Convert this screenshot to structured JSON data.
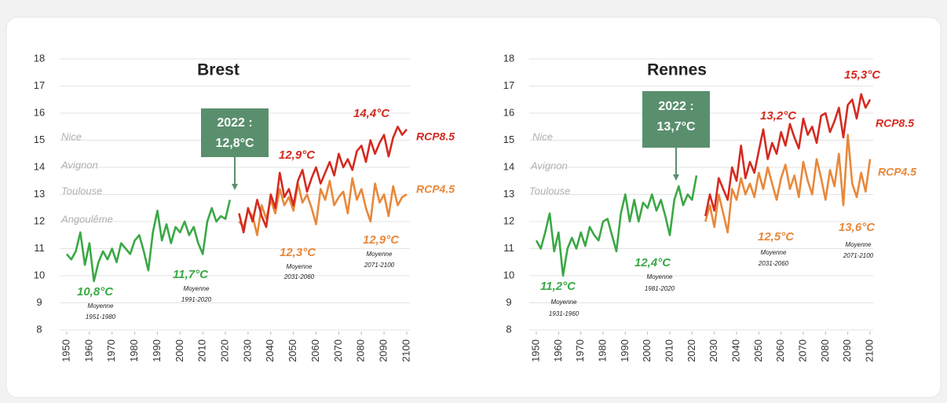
{
  "chart_data": [
    {
      "type": "line",
      "title": "Brest",
      "x": [
        1950,
        1952,
        1954,
        1956,
        1958,
        1960,
        1962,
        1964,
        1966,
        1968,
        1970,
        1972,
        1974,
        1976,
        1978,
        1980,
        1982,
        1984,
        1986,
        1988,
        1990,
        1992,
        1994,
        1996,
        1998,
        2000,
        2002,
        2004,
        2006,
        2008,
        2010,
        2012,
        2014,
        2016,
        2018,
        2020,
        2022,
        2024,
        2026,
        2028,
        2030,
        2032,
        2034,
        2036,
        2038,
        2040,
        2042,
        2044,
        2046,
        2048,
        2050,
        2052,
        2054,
        2056,
        2058,
        2060,
        2062,
        2064,
        2066,
        2068,
        2070,
        2072,
        2074,
        2076,
        2078,
        2080,
        2082,
        2084,
        2086,
        2088,
        2090,
        2092,
        2094,
        2096,
        2098,
        2100
      ],
      "xlim": [
        1950,
        2100
      ],
      "xticks": [
        1950,
        1960,
        1970,
        1980,
        1990,
        2000,
        2010,
        2020,
        2030,
        2040,
        2050,
        2060,
        2070,
        2080,
        2090,
        2100
      ],
      "ylim": [
        8,
        18
      ],
      "yticks": [
        8,
        9,
        10,
        11,
        12,
        13,
        14,
        15,
        16,
        17,
        18
      ],
      "grid": true,
      "series": [
        {
          "color": "#3aa845",
          "values": [
            10.8,
            10.6,
            10.9,
            11.6,
            10.4,
            11.2,
            9.8,
            10.5,
            10.9,
            10.6,
            11.0,
            10.5,
            11.2,
            11.0,
            10.8,
            11.3,
            11.5,
            10.9,
            10.2,
            11.6,
            12.4,
            11.3,
            11.9,
            11.2,
            11.8,
            11.6,
            12.0,
            11.5,
            11.8,
            11.2,
            10.8,
            12.0,
            12.5,
            12.0,
            12.2,
            12.1,
            12.8,
            null,
            null,
            null,
            null,
            null,
            null,
            null,
            null,
            null,
            null,
            null,
            null,
            null,
            null,
            null,
            null,
            null,
            null,
            null,
            null,
            null,
            null,
            null,
            null,
            null,
            null,
            null,
            null,
            null,
            null,
            null,
            null,
            null,
            null,
            null,
            null,
            null,
            null,
            null
          ]
        },
        {
          "name": "RCP4.5",
          "color": "#e8883a",
          "values": [
            null,
            null,
            null,
            null,
            null,
            null,
            null,
            null,
            null,
            null,
            null,
            null,
            null,
            null,
            null,
            null,
            null,
            null,
            null,
            null,
            null,
            null,
            null,
            null,
            null,
            null,
            null,
            null,
            null,
            null,
            null,
            null,
            null,
            null,
            null,
            null,
            null,
            null,
            12.0,
            11.8,
            12.4,
            12.2,
            11.5,
            12.6,
            12.1,
            12.8,
            12.3,
            13.2,
            12.6,
            12.9,
            12.4,
            13.4,
            12.7,
            13.0,
            12.5,
            11.9,
            13.2,
            12.8,
            13.5,
            12.6,
            12.9,
            13.1,
            12.3,
            13.6,
            12.8,
            13.2,
            12.5,
            12.0,
            13.4,
            12.7,
            13.0,
            12.2,
            13.3,
            12.6,
            12.9,
            13.0
          ]
        },
        {
          "name": "RCP8.5",
          "color": "#d42a20",
          "values": [
            null,
            null,
            null,
            null,
            null,
            null,
            null,
            null,
            null,
            null,
            null,
            null,
            null,
            null,
            null,
            null,
            null,
            null,
            null,
            null,
            null,
            null,
            null,
            null,
            null,
            null,
            null,
            null,
            null,
            null,
            null,
            null,
            null,
            null,
            null,
            null,
            null,
            null,
            12.3,
            11.6,
            12.5,
            12.0,
            12.8,
            12.2,
            11.8,
            13.0,
            12.5,
            13.8,
            12.9,
            13.2,
            12.6,
            13.5,
            13.9,
            13.1,
            13.6,
            14.0,
            13.4,
            13.8,
            14.2,
            13.7,
            14.5,
            14.0,
            14.3,
            13.9,
            14.6,
            14.8,
            14.2,
            15.0,
            14.5,
            14.9,
            15.2,
            14.4,
            15.1,
            15.5,
            15.2,
            15.4
          ]
        }
      ],
      "annotations": [
        "Nice",
        "Avignon",
        "Toulouse",
        "Angoulême",
        "10,8°C",
        "Moyenne",
        "1951-1980",
        "11,7°C",
        "Moyenne",
        "1991-2020",
        "2022 :",
        "12,8°C",
        "12,9°C",
        "12,3°C",
        "Moyenne",
        "2031-2060",
        "14,4°C",
        "12,9°C",
        "Moyenne",
        "2071-2100"
      ]
    },
    {
      "type": "line",
      "title": "Rennes",
      "x": [
        1950,
        1952,
        1954,
        1956,
        1958,
        1960,
        1962,
        1964,
        1966,
        1968,
        1970,
        1972,
        1974,
        1976,
        1978,
        1980,
        1982,
        1984,
        1986,
        1988,
        1990,
        1992,
        1994,
        1996,
        1998,
        2000,
        2002,
        2004,
        2006,
        2008,
        2010,
        2012,
        2014,
        2016,
        2018,
        2020,
        2022,
        2024,
        2026,
        2028,
        2030,
        2032,
        2034,
        2036,
        2038,
        2040,
        2042,
        2044,
        2046,
        2048,
        2050,
        2052,
        2054,
        2056,
        2058,
        2060,
        2062,
        2064,
        2066,
        2068,
        2070,
        2072,
        2074,
        2076,
        2078,
        2080,
        2082,
        2084,
        2086,
        2088,
        2090,
        2092,
        2094,
        2096,
        2098,
        2100
      ],
      "xlim": [
        1950,
        2100
      ],
      "xticks": [
        1950,
        1960,
        1970,
        1980,
        1990,
        2000,
        2010,
        2020,
        2030,
        2040,
        2050,
        2060,
        2070,
        2080,
        2090,
        2100
      ],
      "ylim": [
        8,
        18
      ],
      "yticks": [
        8,
        9,
        10,
        11,
        12,
        13,
        14,
        15,
        16,
        17,
        18
      ],
      "grid": true,
      "series": [
        {
          "color": "#3aa845",
          "values": [
            11.3,
            11.0,
            11.6,
            12.3,
            10.9,
            11.6,
            10.0,
            11.0,
            11.4,
            11.0,
            11.6,
            11.1,
            11.8,
            11.5,
            11.3,
            12.0,
            12.1,
            11.5,
            10.9,
            12.3,
            13.0,
            12.0,
            12.8,
            12.0,
            12.7,
            12.5,
            13.0,
            12.4,
            12.8,
            12.2,
            11.5,
            12.8,
            13.3,
            12.6,
            13.0,
            12.8,
            13.7,
            null,
            null,
            null,
            null,
            null,
            null,
            null,
            null,
            null,
            null,
            null,
            null,
            null,
            null,
            null,
            null,
            null,
            null,
            null,
            null,
            null,
            null,
            null,
            null,
            null,
            null,
            null,
            null,
            null,
            null,
            null,
            null,
            null,
            null,
            null,
            null,
            null,
            null,
            null
          ]
        },
        {
          "name": "RCP4.5",
          "color": "#e8883a",
          "values": [
            null,
            null,
            null,
            null,
            null,
            null,
            null,
            null,
            null,
            null,
            null,
            null,
            null,
            null,
            null,
            null,
            null,
            null,
            null,
            null,
            null,
            null,
            null,
            null,
            null,
            null,
            null,
            null,
            null,
            null,
            null,
            null,
            null,
            null,
            null,
            null,
            null,
            null,
            12.0,
            12.6,
            11.8,
            13.0,
            12.3,
            11.6,
            13.2,
            12.8,
            13.6,
            13.0,
            13.4,
            12.9,
            13.8,
            13.2,
            14.0,
            13.4,
            12.8,
            13.6,
            14.1,
            13.2,
            13.7,
            12.9,
            14.2,
            13.5,
            13.0,
            14.3,
            13.6,
            12.8,
            13.9,
            13.3,
            14.5,
            12.6,
            15.2,
            13.4,
            12.9,
            13.8,
            13.1,
            14.3
          ]
        },
        {
          "name": "RCP8.5",
          "color": "#d42a20",
          "values": [
            null,
            null,
            null,
            null,
            null,
            null,
            null,
            null,
            null,
            null,
            null,
            null,
            null,
            null,
            null,
            null,
            null,
            null,
            null,
            null,
            null,
            null,
            null,
            null,
            null,
            null,
            null,
            null,
            null,
            null,
            null,
            null,
            null,
            null,
            null,
            null,
            null,
            null,
            12.2,
            13.0,
            12.4,
            13.6,
            13.2,
            12.8,
            14.0,
            13.5,
            14.8,
            13.6,
            14.2,
            13.8,
            14.6,
            15.4,
            14.3,
            14.9,
            14.5,
            15.3,
            14.8,
            15.6,
            15.1,
            14.7,
            15.8,
            15.2,
            15.5,
            14.9,
            15.9,
            16.0,
            15.3,
            15.7,
            16.2,
            15.1,
            16.3,
            16.5,
            15.8,
            16.7,
            16.2,
            16.5
          ]
        }
      ],
      "annotations": [
        "Nice",
        "Avignon",
        "Toulouse",
        "11,2°C",
        "Moyenne",
        "1931-1960",
        "12,4°C",
        "Moyenne",
        "1981-2020",
        "2022 :",
        "13,7°C",
        "13,2°C",
        "12,5°C",
        "Moyenne",
        "2031-2060",
        "15,3°C",
        "13,6°C",
        "Moyenne",
        "2071-2100"
      ]
    }
  ]
}
